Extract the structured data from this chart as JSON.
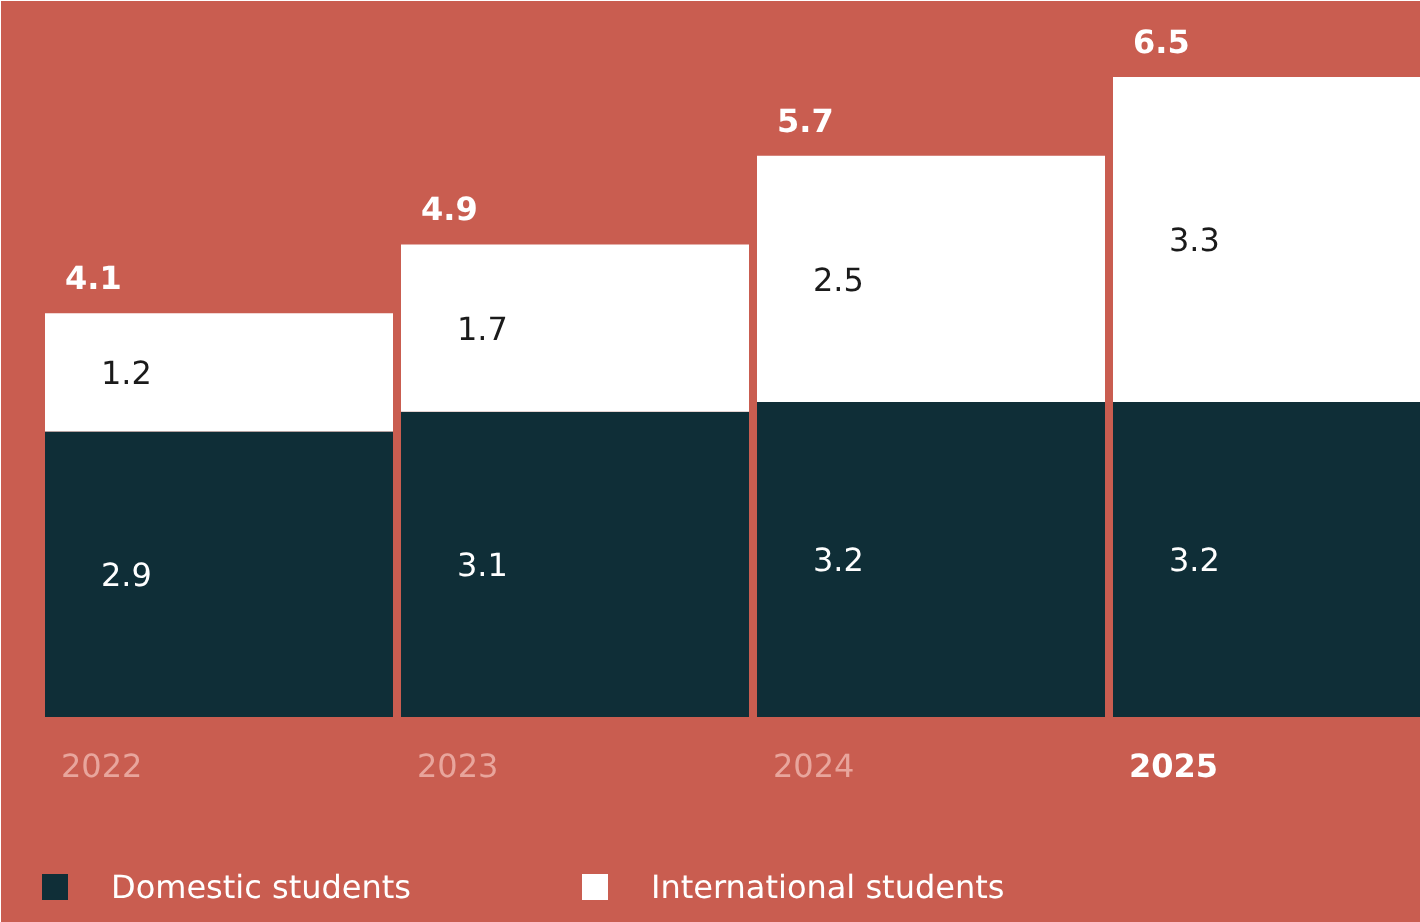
{
  "chart_data": {
    "type": "bar",
    "stacked": true,
    "categories": [
      "2022",
      "2023",
      "2024",
      "2025"
    ],
    "series": [
      {
        "name": "Domestic students",
        "color": "#0f2e37",
        "values": [
          2.9,
          3.1,
          3.2,
          3.2
        ]
      },
      {
        "name": "International students",
        "color": "#ffffff",
        "values": [
          1.2,
          1.7,
          2.5,
          3.3
        ]
      }
    ],
    "data_labels": true,
    "totals": [
      "4.1",
      "4.9",
      "5.7",
      "6.5"
    ],
    "legend": "bottom"
  }
}
